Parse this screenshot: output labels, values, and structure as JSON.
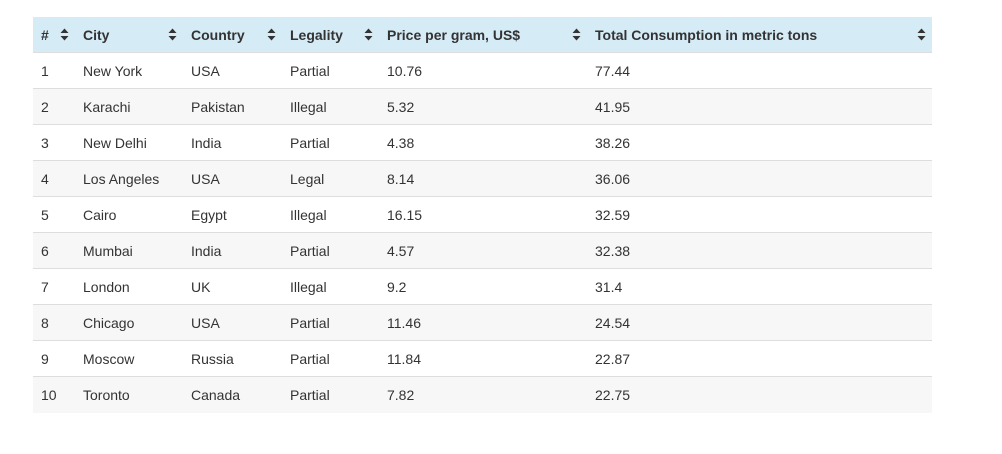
{
  "table": {
    "columns": [
      {
        "key": "rank",
        "label": "#"
      },
      {
        "key": "city",
        "label": "City"
      },
      {
        "key": "country",
        "label": "Country"
      },
      {
        "key": "legality",
        "label": "Legality"
      },
      {
        "key": "price",
        "label": "Price per gram, US$"
      },
      {
        "key": "consumption",
        "label": "Total Consumption in metric tons"
      }
    ],
    "sort_icon": "sort-up-down-icon",
    "rows": [
      {
        "rank": "1",
        "city": "New York",
        "country": "USA",
        "legality": "Partial",
        "price": "10.76",
        "consumption": "77.44"
      },
      {
        "rank": "2",
        "city": "Karachi",
        "country": "Pakistan",
        "legality": "Illegal",
        "price": "5.32",
        "consumption": "41.95"
      },
      {
        "rank": "3",
        "city": "New Delhi",
        "country": "India",
        "legality": "Partial",
        "price": "4.38",
        "consumption": "38.26"
      },
      {
        "rank": "4",
        "city": "Los Angeles",
        "country": "USA",
        "legality": "Legal",
        "price": "8.14",
        "consumption": "36.06"
      },
      {
        "rank": "5",
        "city": "Cairo",
        "country": "Egypt",
        "legality": "Illegal",
        "price": "16.15",
        "consumption": "32.59"
      },
      {
        "rank": "6",
        "city": "Mumbai",
        "country": "India",
        "legality": "Partial",
        "price": "4.57",
        "consumption": "32.38"
      },
      {
        "rank": "7",
        "city": "London",
        "country": "UK",
        "legality": "Illegal",
        "price": "9.2",
        "consumption": "31.4"
      },
      {
        "rank": "8",
        "city": "Chicago",
        "country": "USA",
        "legality": "Partial",
        "price": "11.46",
        "consumption": "24.54"
      },
      {
        "rank": "9",
        "city": "Moscow",
        "country": "Russia",
        "legality": "Partial",
        "price": "11.84",
        "consumption": "22.87"
      },
      {
        "rank": "10",
        "city": "Toronto",
        "country": "Canada",
        "legality": "Partial",
        "price": "7.82",
        "consumption": "22.75"
      }
    ]
  },
  "colors": {
    "header_bg": "#d5ebf6",
    "row_alt_bg": "#f7f7f7",
    "border": "#dddddd",
    "text": "#333333"
  }
}
